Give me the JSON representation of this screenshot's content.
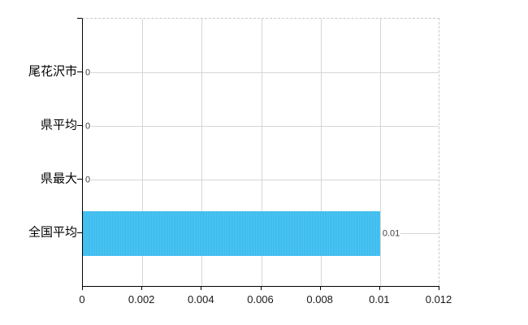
{
  "chart_data": {
    "type": "bar",
    "orientation": "horizontal",
    "categories": [
      "尾花沢市",
      "県平均",
      "県最大",
      "全国平均"
    ],
    "values": [
      0,
      0,
      0,
      0.01
    ],
    "value_labels": [
      "0",
      "0",
      "0",
      "0.01"
    ],
    "xlabel": "",
    "ylabel": "",
    "xlim": [
      0,
      0.012
    ],
    "xtick_values": [
      0,
      0.002,
      0.004,
      0.006,
      0.008,
      0.01,
      0.012
    ],
    "xtick_labels": [
      "0",
      "0.002",
      "0.004",
      "0.006",
      "0.008",
      "0.01",
      "0.012"
    ],
    "grid": true,
    "legend": false,
    "colors": {
      "bar": "#44bff0",
      "gridline": "#d6d6d6",
      "axis": "#000000",
      "plot_border_dashed": "#c9c9c9",
      "background": "#ffffff",
      "category_text": "#000000",
      "tick_text": "#1a1a1a",
      "value_text": "#3c3c3c"
    }
  }
}
